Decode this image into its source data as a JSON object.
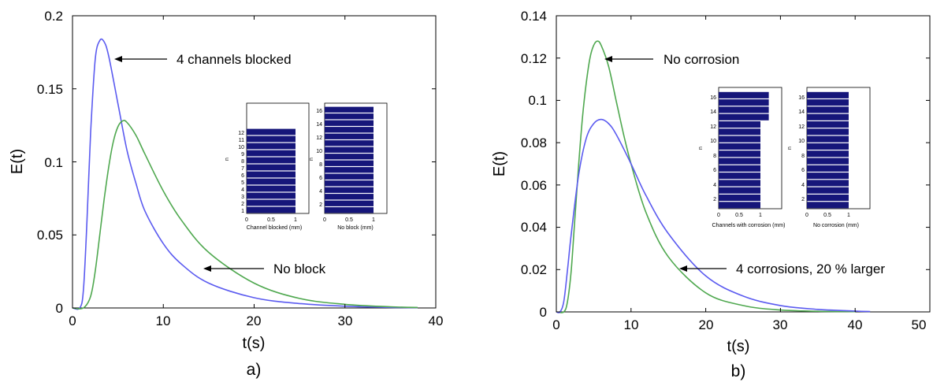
{
  "panels": [
    {
      "caption": "a)",
      "xlabel": "t(s)",
      "ylabel": "E(t)",
      "xlim": [
        0,
        40
      ],
      "ylim": [
        0,
        0.2
      ],
      "xticks": [
        "0",
        "10",
        "20",
        "30",
        "40"
      ],
      "yticks": [
        "0",
        "0.05",
        "0.1",
        "0.15",
        "0.2"
      ],
      "annotations": [
        "4 channels blocked",
        "No block"
      ],
      "inset_left": {
        "xlabel": "Channel blocked (mm)",
        "ylabel": "n",
        "xticks": [
          "0",
          "0.5",
          "1"
        ],
        "yticks": [
          "1",
          "2",
          "3",
          "4",
          "5",
          "6",
          "7",
          "8",
          "9",
          "10",
          "11",
          "12"
        ]
      },
      "inset_right": {
        "xlabel": "No block (mm)",
        "ylabel": "n",
        "xticks": [
          "0",
          "0.5",
          "1"
        ],
        "yticks": [
          "2",
          "4",
          "6",
          "8",
          "10",
          "12",
          "14",
          "16"
        ]
      }
    },
    {
      "caption": "b)",
      "xlabel": "t(s)",
      "ylabel": "E(t)",
      "xlim": [
        0,
        50
      ],
      "ylim": [
        0,
        0.14
      ],
      "xticks": [
        "0",
        "10",
        "20",
        "30",
        "40",
        "50"
      ],
      "yticks": [
        "0",
        "0.02",
        "0.04",
        "0.06",
        "0.08",
        "0.1",
        "0.12",
        "0.14"
      ],
      "annotations": [
        "No corrosion",
        "4 corrosions, 20 % larger"
      ],
      "inset_left": {
        "xlabel": "Channels with corrosion (mm)",
        "ylabel": "n",
        "xticks": [
          "0",
          "0.5",
          "1"
        ],
        "yticks": [
          "2",
          "4",
          "6",
          "8",
          "10",
          "12",
          "14",
          "16"
        ]
      },
      "inset_right": {
        "xlabel": "No corrosion (mm)",
        "ylabel": "n",
        "xticks": [
          "0",
          "0.5",
          "1"
        ],
        "yticks": [
          "2",
          "4",
          "6",
          "8",
          "10",
          "12",
          "14",
          "16"
        ]
      }
    }
  ],
  "colors": {
    "blue": "#5b5bf0",
    "green": "#4fa84f",
    "bar": "#16167a",
    "axis": "#000000"
  },
  "chart_data": [
    {
      "type": "line",
      "xlabel": "t(s)",
      "ylabel": "E(t)",
      "xlim": [
        0,
        40
      ],
      "ylim": [
        0,
        0.2
      ],
      "series": [
        {
          "color": "blue",
          "x": [
            0,
            0.8,
            1.2,
            1.6,
            2.0,
            2.5,
            3.0,
            3.5,
            4.0,
            5.0,
            6.0,
            7.0,
            8.0,
            10.0,
            12.0,
            15.0,
            20.0,
            25.0,
            30.0,
            35.0,
            38.0
          ],
          "y": [
            0,
            0.0,
            0.012,
            0.06,
            0.12,
            0.17,
            0.183,
            0.182,
            0.172,
            0.14,
            0.108,
            0.085,
            0.066,
            0.044,
            0.03,
            0.017,
            0.007,
            0.003,
            0.0012,
            0.0004,
            0.0002
          ]
        },
        {
          "color": "green",
          "x": [
            0,
            1.2,
            2.0,
            2.5,
            3.0,
            3.5,
            4.0,
            4.5,
            5.0,
            5.5,
            6.0,
            7.0,
            8.0,
            10.0,
            12.0,
            15.0,
            20.0,
            25.0,
            30.0,
            35.0,
            38.0
          ],
          "y": [
            0,
            0.0,
            0.008,
            0.025,
            0.05,
            0.075,
            0.097,
            0.114,
            0.124,
            0.128,
            0.127,
            0.118,
            0.105,
            0.08,
            0.06,
            0.038,
            0.017,
            0.0065,
            0.0025,
            0.0008,
            0.0003
          ]
        }
      ]
    },
    {
      "type": "line",
      "xlabel": "t(s)",
      "ylabel": "E(t)",
      "xlim": [
        0,
        50
      ],
      "ylim": [
        0,
        0.14
      ],
      "series": [
        {
          "color": "green",
          "x": [
            0,
            1.0,
            1.5,
            2.0,
            2.5,
            3.0,
            3.5,
            4.0,
            4.5,
            5.0,
            5.5,
            6.0,
            7.0,
            8.0,
            9.0,
            10.0,
            12.0,
            15.0,
            20.0,
            25.0,
            30.0,
            35.0,
            40.0
          ],
          "y": [
            0,
            0.0,
            0.005,
            0.02,
            0.045,
            0.07,
            0.092,
            0.108,
            0.12,
            0.126,
            0.128,
            0.126,
            0.116,
            0.1,
            0.084,
            0.07,
            0.047,
            0.026,
            0.009,
            0.003,
            0.0009,
            0.0003,
            0.0001
          ]
        },
        {
          "color": "blue",
          "x": [
            0,
            0.5,
            1.0,
            1.5,
            2.0,
            3.0,
            4.0,
            5.0,
            6.0,
            7.0,
            8.0,
            10.0,
            12.0,
            15.0,
            20.0,
            25.0,
            30.0,
            35.0,
            40.0,
            42.0
          ],
          "y": [
            0,
            0.0,
            0.005,
            0.02,
            0.037,
            0.065,
            0.082,
            0.089,
            0.091,
            0.089,
            0.084,
            0.07,
            0.055,
            0.037,
            0.017,
            0.0075,
            0.003,
            0.0012,
            0.0004,
            0.0002
          ]
        }
      ]
    }
  ]
}
